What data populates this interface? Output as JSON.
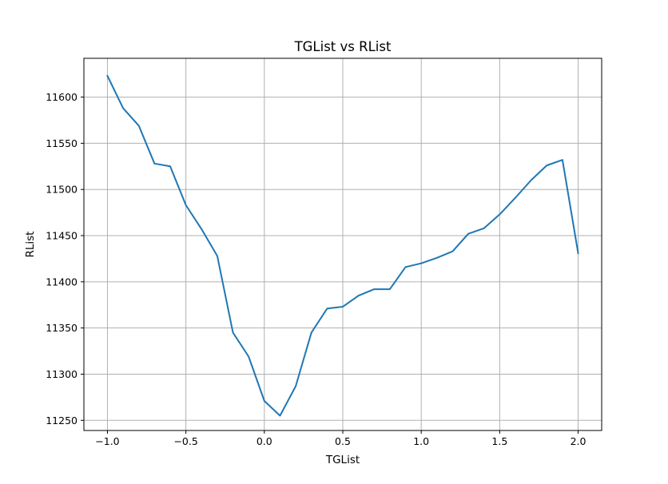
{
  "chart_data": {
    "type": "line",
    "title": "TGList vs RList",
    "xlabel": "TGList",
    "ylabel": "RList",
    "xlim": [
      -1.15,
      2.15
    ],
    "ylim": [
      11239,
      11642
    ],
    "grid": true,
    "xticks": [
      {
        "value": -1.0,
        "label": "−1.0"
      },
      {
        "value": -0.5,
        "label": "−0.5"
      },
      {
        "value": 0.0,
        "label": "0.0"
      },
      {
        "value": 0.5,
        "label": "0.5"
      },
      {
        "value": 1.0,
        "label": "1.0"
      },
      {
        "value": 1.5,
        "label": "1.5"
      },
      {
        "value": 2.0,
        "label": "2.0"
      }
    ],
    "yticks": [
      {
        "value": 11250,
        "label": "11250"
      },
      {
        "value": 11300,
        "label": "11300"
      },
      {
        "value": 11350,
        "label": "11350"
      },
      {
        "value": 11400,
        "label": "11400"
      },
      {
        "value": 11450,
        "label": "11450"
      },
      {
        "value": 11500,
        "label": "11500"
      },
      {
        "value": 11550,
        "label": "11550"
      },
      {
        "value": 11600,
        "label": "11600"
      }
    ],
    "series": [
      {
        "color": "#1f77b4",
        "x": [
          -1.0,
          -0.9,
          -0.8,
          -0.7,
          -0.6,
          -0.5,
          -0.4,
          -0.3,
          -0.2,
          -0.1,
          0.0,
          0.1,
          0.2,
          0.3,
          0.4,
          0.5,
          0.6,
          0.7,
          0.8,
          0.9,
          1.0,
          1.1,
          1.2,
          1.3,
          1.4,
          1.5,
          1.6,
          1.7,
          1.8,
          1.9,
          2.0
        ],
        "y": [
          11623,
          11588,
          11569,
          11528,
          11525,
          11483,
          11457,
          11428,
          11345,
          11319,
          11271,
          11255,
          11287,
          11345,
          11371,
          11373,
          11385,
          11392,
          11392,
          11416,
          11420,
          11426,
          11433,
          11452,
          11458,
          11473,
          11491,
          11510,
          11526,
          11532,
          11431
        ]
      }
    ]
  }
}
